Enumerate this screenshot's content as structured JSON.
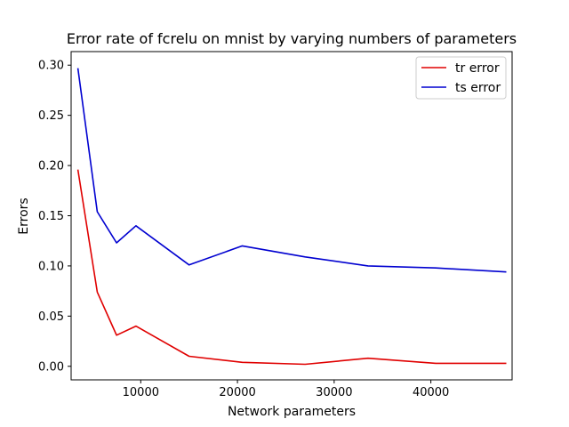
{
  "chart_data": {
    "type": "line",
    "title": "Error rate of fcrelu on mnist by varying numbers of parameters",
    "xlabel": "Network parameters",
    "ylabel": "Errors",
    "xlim": [
      2800,
      48400
    ],
    "ylim": [
      -0.0135,
      0.3135
    ],
    "xticks": [
      10000,
      20000,
      30000,
      40000
    ],
    "xtick_labels": [
      "10000",
      "20000",
      "30000",
      "40000"
    ],
    "yticks": [
      0.0,
      0.05,
      0.1,
      0.15,
      0.2,
      0.25,
      0.3
    ],
    "ytick_labels": [
      "0.00",
      "0.05",
      "0.10",
      "0.15",
      "0.20",
      "0.25",
      "0.30"
    ],
    "grid": false,
    "legend_position": "top-right",
    "series": [
      {
        "name": "tr error",
        "color": "#e00000",
        "x": [
          3500,
          5500,
          7500,
          9500,
          15000,
          20500,
          27000,
          33500,
          40500,
          47800
        ],
        "y": [
          0.196,
          0.074,
          0.031,
          0.04,
          0.01,
          0.004,
          0.002,
          0.008,
          0.003,
          0.003
        ]
      },
      {
        "name": "ts error",
        "color": "#0000d0",
        "x": [
          3500,
          5500,
          7500,
          9500,
          15000,
          20500,
          27000,
          33500,
          40500,
          47800
        ],
        "y": [
          0.297,
          0.154,
          0.123,
          0.14,
          0.101,
          0.12,
          0.109,
          0.1,
          0.098,
          0.094
        ]
      }
    ]
  }
}
